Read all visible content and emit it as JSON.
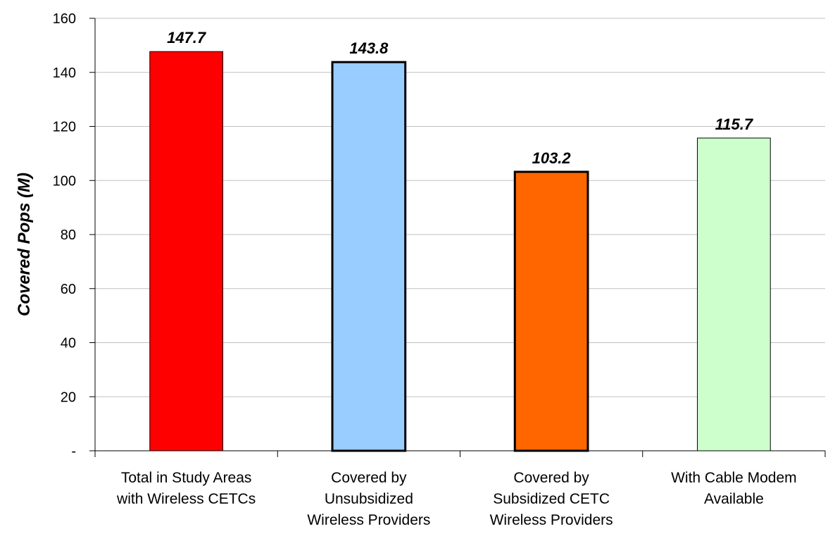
{
  "chart_data": {
    "type": "bar",
    "ylabel": "Covered Pops (M)",
    "ylim": [
      0,
      160
    ],
    "yticks": [
      0,
      20,
      40,
      60,
      80,
      100,
      120,
      140,
      160
    ],
    "ytick_labels": [
      "-",
      "20",
      "40",
      "60",
      "80",
      "100",
      "120",
      "140",
      "160"
    ],
    "grid": true,
    "categories": [
      [
        "Total in Study Areas",
        "with Wireless CETCs"
      ],
      [
        "Covered by",
        "Unsubsidized",
        "Wireless Providers"
      ],
      [
        "Covered by",
        "Subsidized CETC",
        "Wireless Providers"
      ],
      [
        "With Cable Modem",
        "Available"
      ]
    ],
    "values": [
      147.7,
      143.8,
      103.2,
      115.7
    ],
    "data_labels": [
      "147.7",
      "143.8",
      "103.2",
      "115.7"
    ],
    "bar_colors": [
      "#ff0000",
      "#99ccff",
      "#ff6600",
      "#ccffcc"
    ],
    "bar_border_emphasis": [
      false,
      true,
      true,
      false
    ]
  }
}
